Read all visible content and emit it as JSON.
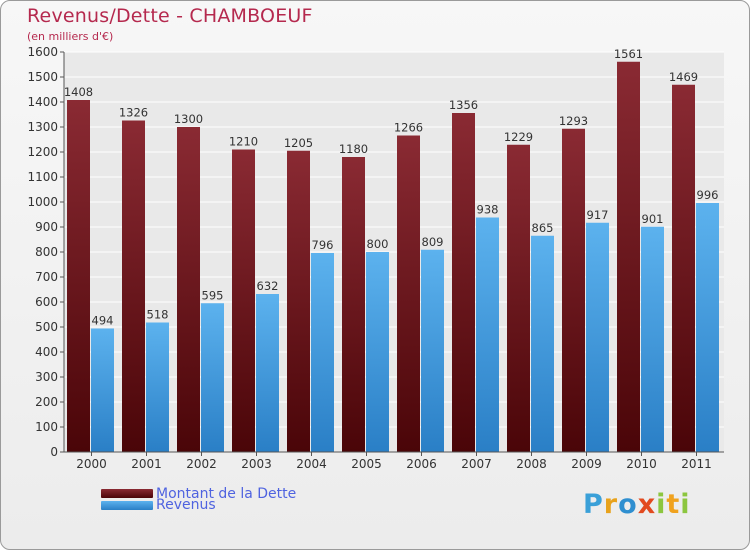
{
  "header": {
    "title": "Revenus/Dette - CHAMBOEUF",
    "subtitle": "(en milliers d'€)"
  },
  "legend": {
    "items": [
      {
        "label": "Montant de la Dette",
        "color": "#7a1c23"
      },
      {
        "label": "Revenus",
        "color": "#4aa3e6"
      }
    ]
  },
  "logo": {
    "letters": [
      "P",
      "r",
      "o",
      "x",
      "i",
      "t",
      "i"
    ],
    "colors": [
      "#3aa0d8",
      "#e8a21b",
      "#2f8fd0",
      "#e24a1f",
      "#8cc63f",
      "#f0a21e",
      "#8cc63f"
    ]
  },
  "chart_data": {
    "type": "bar",
    "categories": [
      "2000",
      "2001",
      "2002",
      "2003",
      "2004",
      "2005",
      "2006",
      "2007",
      "2008",
      "2009",
      "2010",
      "2011"
    ],
    "series": [
      {
        "name": "Montant de la Dette",
        "values": [
          1408,
          1326,
          1300,
          1210,
          1205,
          1180,
          1266,
          1356,
          1229,
          1293,
          1561,
          1469
        ]
      },
      {
        "name": "Revenus",
        "values": [
          494,
          518,
          595,
          632,
          796,
          800,
          809,
          938,
          865,
          917,
          901,
          996
        ]
      }
    ],
    "ylim": [
      0,
      1600
    ],
    "yticks": [
      0,
      100,
      200,
      300,
      400,
      500,
      600,
      700,
      800,
      900,
      1000,
      1100,
      1200,
      1300,
      1400,
      1500,
      1600
    ],
    "grid": true,
    "legend_position": "bottom-left"
  }
}
